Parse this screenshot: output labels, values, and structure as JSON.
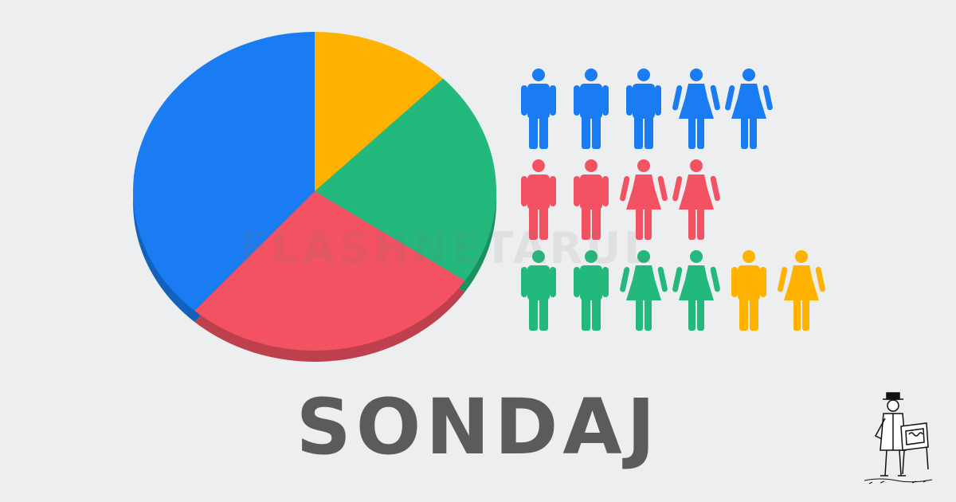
{
  "title": "SONDAJ",
  "watermark": "FLASHNETARUL",
  "colors": {
    "background": "#eceef0",
    "blue": "#1a7cf2",
    "yellow": "#ffb300",
    "green": "#23b97c",
    "red": "#f25262",
    "title": "#5b5b5b"
  },
  "chart_data": {
    "type": "pie",
    "slices": [
      {
        "color": "#ffb300",
        "value": 12.5
      },
      {
        "color": "#23b97c",
        "value": 22
      },
      {
        "color": "#f25262",
        "value": 27
      },
      {
        "color": "#1a7cf2",
        "value": 38.5
      }
    ]
  },
  "people_rows": [
    {
      "color": "#1a7cf2",
      "figures": [
        "male",
        "male",
        "male",
        "female",
        "female"
      ]
    },
    {
      "color": "#f25262",
      "figures": [
        "male",
        "male",
        "female",
        "female"
      ]
    },
    {
      "color": "#23b97c",
      "figures": [
        "male",
        "male",
        "female",
        "female"
      ]
    },
    {
      "color": "#ffb300",
      "figures": [
        "male",
        "female"
      ]
    }
  ],
  "mascot": {
    "icon": "organ-grinder-illustration"
  }
}
